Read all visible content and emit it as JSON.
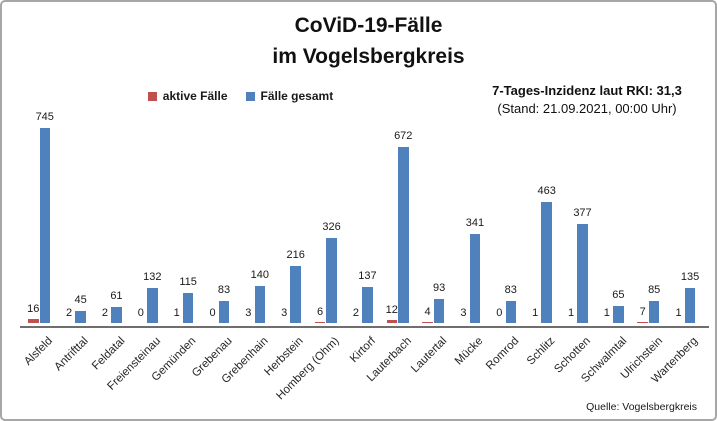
{
  "header": {
    "title_line1": "CoViD-19-Fälle",
    "title_line2": "im Vogelsbergkreis"
  },
  "legend": [
    {
      "label": "aktive Fälle",
      "color": "#c0504d"
    },
    {
      "label": "Fälle gesamt",
      "color": "#4f81bd"
    }
  ],
  "incidence": {
    "line1": "7-Tages-Inzidenz laut RKI: 31,3",
    "line2": "(Stand: 21.09.2021, 00:00 Uhr)"
  },
  "source": "Quelle: Vogelsbergkreis",
  "chart_data": {
    "type": "bar",
    "title": "CoViD-19-Fälle im Vogelsbergkreis",
    "categories": [
      "Alsfeld",
      "Antrifttal",
      "Feldatal",
      "Freiensteinau",
      "Gemünden",
      "Grebenau",
      "Grebenhain",
      "Herbstein",
      "Homberg (Ohm)",
      "Kirtorf",
      "Lauterbach",
      "Lautertal",
      "Mücke",
      "Romrod",
      "Schlitz",
      "Schotten",
      "Schwalmtal",
      "Ulrichstein",
      "Wartenberg"
    ],
    "series": [
      {
        "name": "aktive Fälle",
        "color": "#c0504d",
        "values": [
          16,
          2,
          2,
          0,
          1,
          0,
          3,
          3,
          6,
          2,
          12,
          4,
          3,
          0,
          1,
          1,
          1,
          7,
          1
        ]
      },
      {
        "name": "Fälle gesamt",
        "color": "#4f81bd",
        "values": [
          745,
          45,
          61,
          132,
          115,
          83,
          140,
          216,
          326,
          137,
          672,
          93,
          341,
          83,
          463,
          377,
          65,
          85,
          135
        ]
      }
    ],
    "xlabel": "",
    "ylabel": "",
    "ylim": [
      0,
      800
    ],
    "grid": false,
    "y_axis_visible": false,
    "value_labels": true,
    "legend_position": "top-center"
  }
}
